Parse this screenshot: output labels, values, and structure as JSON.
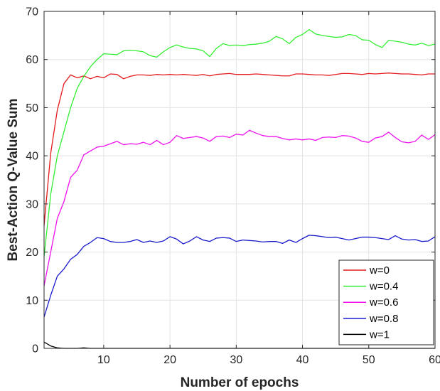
{
  "chart_data": {
    "type": "line",
    "title": "",
    "xlabel": "Number of epochs",
    "ylabel": "Best-Action Q-Value Sum",
    "xlim": [
      1,
      60
    ],
    "ylim": [
      0,
      70
    ],
    "xticks": [
      10,
      20,
      30,
      40,
      50,
      60
    ],
    "yticks": [
      0,
      10,
      20,
      30,
      40,
      50,
      60,
      70
    ],
    "grid": true,
    "legend_position": "bottom-right",
    "x": [
      1,
      2,
      3,
      4,
      5,
      6,
      7,
      8,
      9,
      10,
      11,
      12,
      13,
      14,
      15,
      16,
      17,
      18,
      19,
      20,
      21,
      22,
      23,
      24,
      25,
      26,
      27,
      28,
      29,
      30,
      31,
      32,
      33,
      34,
      35,
      36,
      37,
      38,
      39,
      40,
      41,
      42,
      43,
      44,
      45,
      46,
      47,
      48,
      49,
      50,
      51,
      52,
      53,
      54,
      55,
      56,
      57,
      58,
      59,
      60
    ],
    "series": [
      {
        "name": "w=0",
        "color": "#e41a1c",
        "values": [
          25.5,
          40.5,
          49.5,
          55.0,
          56.8,
          56.2,
          56.6,
          56.0,
          56.5,
          56.2,
          57.0,
          56.9,
          56.0,
          56.5,
          56.8,
          56.8,
          56.7,
          56.9,
          56.8,
          56.9,
          56.8,
          56.9,
          56.8,
          56.7,
          56.9,
          56.6,
          56.9,
          57.0,
          57.1,
          56.9,
          56.9,
          56.9,
          57.0,
          56.9,
          56.8,
          56.7,
          56.6,
          56.6,
          57.0,
          57.0,
          56.9,
          56.8,
          56.8,
          56.7,
          56.9,
          57.1,
          57.1,
          57.0,
          56.9,
          57.1,
          57.0,
          57.1,
          57.2,
          57.1,
          57.0,
          57.0,
          56.9,
          56.8,
          57.0,
          57.0
        ]
      },
      {
        "name": "w=0.4",
        "color": "#33ee33",
        "values": [
          19.0,
          32.0,
          40.0,
          45.0,
          50.0,
          54.0,
          56.5,
          58.5,
          60.0,
          61.2,
          61.1,
          61.0,
          61.8,
          61.9,
          61.8,
          61.6,
          60.8,
          60.5,
          61.6,
          62.5,
          63.0,
          62.6,
          62.3,
          62.2,
          61.8,
          60.6,
          62.3,
          63.3,
          62.9,
          63.0,
          62.9,
          63.1,
          63.2,
          63.4,
          63.8,
          64.8,
          64.3,
          63.3,
          64.6,
          65.2,
          66.2,
          65.3,
          65.0,
          64.8,
          64.6,
          64.7,
          65.2,
          65.0,
          64.1,
          64.0,
          63.1,
          62.5,
          64.0,
          63.8,
          63.6,
          63.2,
          63.0,
          63.4,
          62.9,
          63.2
        ]
      },
      {
        "name": "w=0.6",
        "color": "#ee11ee",
        "values": [
          13.0,
          20.0,
          27.0,
          30.5,
          35.5,
          37.0,
          40.2,
          41.0,
          41.8,
          42.0,
          42.5,
          43.0,
          42.3,
          42.5,
          42.4,
          42.8,
          42.3,
          43.2,
          42.3,
          42.8,
          44.2,
          43.6,
          43.8,
          44.0,
          43.7,
          43.0,
          44.0,
          44.1,
          43.8,
          44.5,
          44.3,
          45.3,
          44.7,
          44.2,
          44.0,
          44.0,
          43.6,
          43.3,
          43.5,
          43.3,
          43.5,
          43.2,
          43.8,
          43.9,
          43.8,
          44.2,
          44.1,
          43.7,
          43.0,
          42.8,
          43.7,
          44.0,
          44.9,
          43.8,
          42.9,
          42.7,
          43.0,
          44.3,
          43.4,
          44.4
        ]
      },
      {
        "name": "w=0.8",
        "color": "#1a1acc",
        "values": [
          6.5,
          11.0,
          15.0,
          16.5,
          18.5,
          19.5,
          21.2,
          22.0,
          23.0,
          22.8,
          22.2,
          22.0,
          22.0,
          22.2,
          22.6,
          22.0,
          22.3,
          22.0,
          22.3,
          23.2,
          22.7,
          21.7,
          22.3,
          23.2,
          22.5,
          22.2,
          22.9,
          23.0,
          22.9,
          22.2,
          22.5,
          22.4,
          22.3,
          22.1,
          22.2,
          22.2,
          21.8,
          22.5,
          22.0,
          22.8,
          23.5,
          23.4,
          23.2,
          23.0,
          23.1,
          22.8,
          22.5,
          22.8,
          23.1,
          23.1,
          23.0,
          22.8,
          22.6,
          23.4,
          22.7,
          22.5,
          22.6,
          22.2,
          22.3,
          23.2
        ]
      },
      {
        "name": "w=1",
        "color": "#000000",
        "values": [
          1.3,
          0.5,
          0.1,
          0.0,
          0.0,
          0.0,
          0.1,
          0.0,
          0.0,
          0.0,
          0.0,
          0.0,
          0.0,
          0.0,
          0.0,
          0.0,
          0.0,
          0.0,
          0.0,
          0.0,
          0.0,
          0.0,
          0.0,
          0.0,
          0.0,
          0.0,
          0.0,
          0.0,
          0.0,
          0.0,
          0.0,
          0.0,
          0.0,
          0.0,
          0.0,
          0.0,
          0.0,
          0.0,
          0.0,
          0.0,
          0.0,
          0.0,
          0.0,
          0.0,
          0.0,
          0.0,
          0.0,
          0.0,
          0.0,
          0.0,
          0.0,
          0.0,
          0.0,
          0.0,
          0.0,
          0.0,
          0.0,
          0.0,
          0.0,
          0.0
        ]
      }
    ]
  }
}
